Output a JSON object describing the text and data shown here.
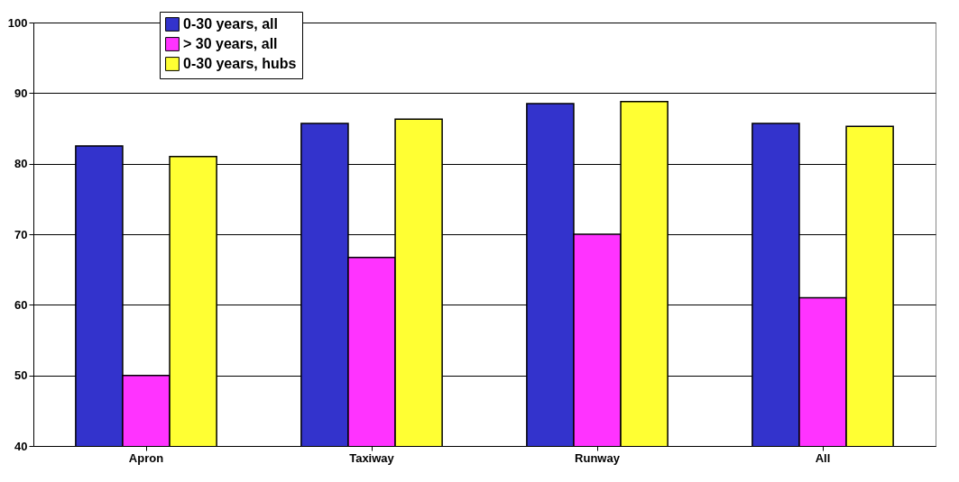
{
  "chart_data": {
    "type": "bar",
    "categories": [
      "Apron",
      "Taxiway",
      "Runway",
      "All"
    ],
    "series": [
      {
        "name": "0-30 years, all",
        "color": "#3333cc",
        "values": [
          82.5,
          85.7,
          88.5,
          85.7
        ]
      },
      {
        "name": "> 30 years, all",
        "color": "#ff33ff",
        "values": [
          50,
          66.7,
          70,
          61
        ]
      },
      {
        "name": "0-30 years, hubs",
        "color": "#ffff33",
        "values": [
          81,
          86.3,
          88.8,
          85.3
        ]
      }
    ],
    "ylim": [
      40,
      100
    ],
    "yticks": [
      40,
      50,
      60,
      70,
      80,
      90,
      100
    ],
    "grid": "y",
    "legend": "top left"
  }
}
